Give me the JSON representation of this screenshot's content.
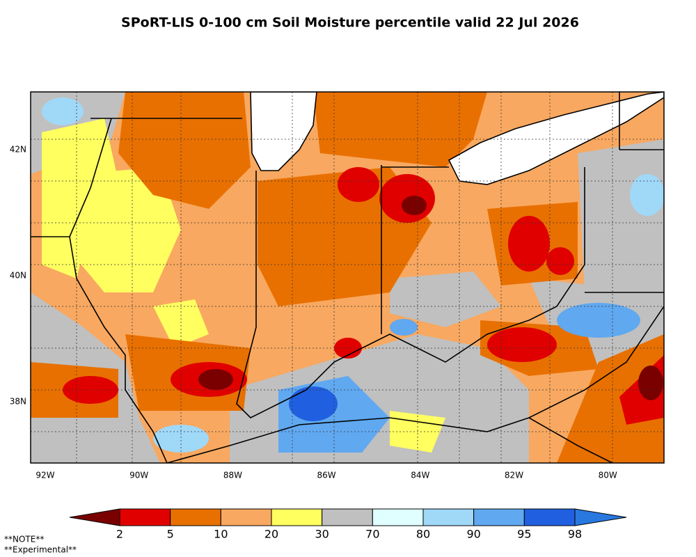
{
  "title": "SPoRT-LIS 0-100 cm Soil Moisture percentile valid 22 Jul 2026",
  "x_labels": [
    "92W",
    "90W",
    "88W",
    "86W",
    "84W",
    "82W",
    "80W"
  ],
  "y_labels": [
    "42N",
    "40N",
    "38N"
  ],
  "colorbar": {
    "ticks": [
      2,
      5,
      10,
      20,
      30,
      70,
      80,
      90,
      95,
      98
    ],
    "colors": [
      "#7a0000",
      "#e10000",
      "#e87000",
      "#f8a860",
      "#ffff60",
      "#c0c0c0",
      "#e0ffff",
      "#a0d8f8",
      "#60a8f0",
      "#2060e0",
      "#2878e0"
    ]
  },
  "notes": [
    "**NOTE**",
    "**Experimental**"
  ]
}
